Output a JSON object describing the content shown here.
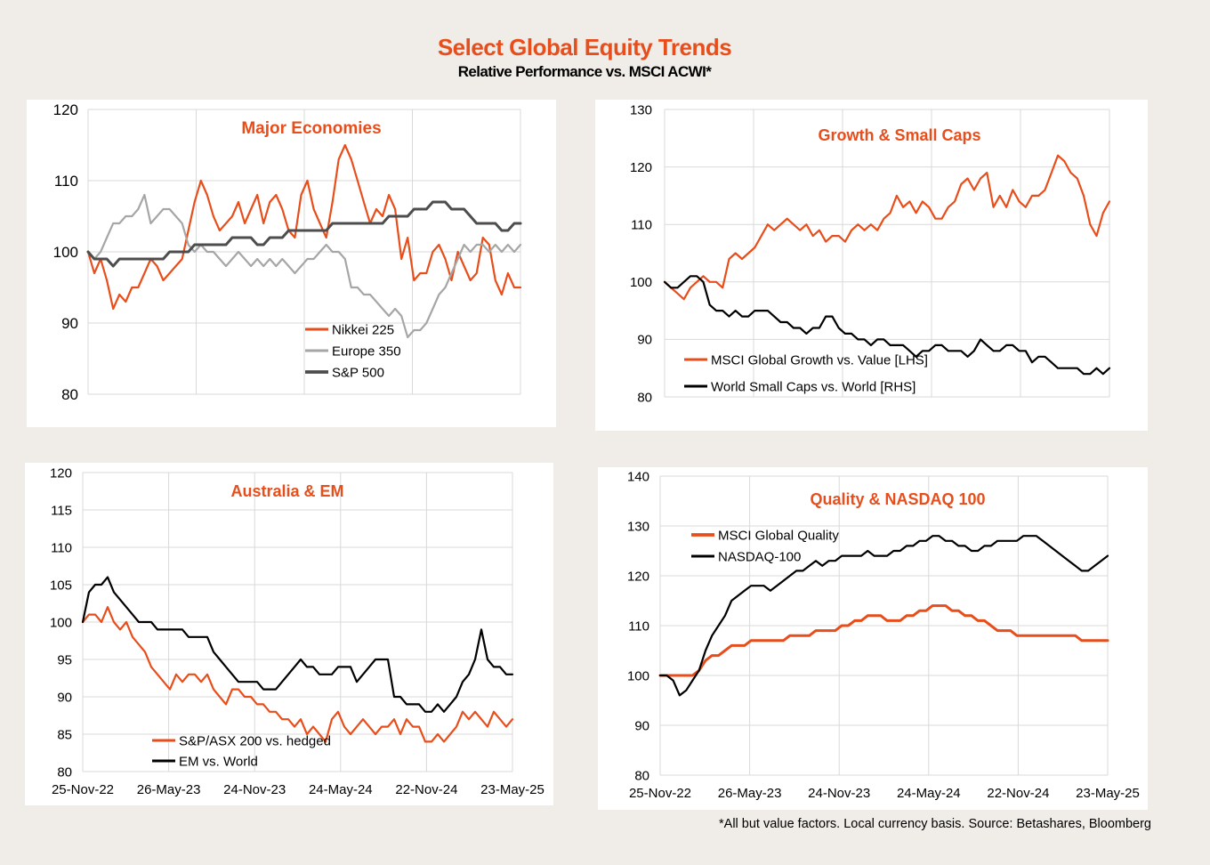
{
  "header": {
    "title": "Select Global Equity Trends",
    "subtitle": "Relative Performance vs. MSCI ACWI*"
  },
  "footnote": "*All but value factors. Local currency basis.  Source: Betashares, Bloomberg",
  "colors": {
    "orange": "#e84e1b",
    "grey": "#a6a6a6",
    "darkgrey": "#4d4d4d",
    "black": "#000000",
    "grid": "#d9d9d9"
  },
  "chart_data": [
    {
      "type": "line",
      "title": "Major Economies",
      "ylim": [
        80,
        120
      ],
      "yticks": [
        "80",
        "90",
        "100",
        "110",
        "120"
      ],
      "xticks": [],
      "grid": true,
      "legend_position": "bottom-right",
      "series": [
        {
          "name": "Nikkei 225",
          "color": "#e84e1b",
          "width": 2.2,
          "values": [
            100,
            97,
            99,
            96,
            92,
            94,
            93,
            95,
            95,
            97,
            99,
            98,
            96,
            97,
            98,
            99,
            103,
            107,
            110,
            108,
            105,
            103,
            104,
            105,
            107,
            104,
            106,
            108,
            104,
            107,
            108,
            106,
            103,
            102,
            108,
            110,
            106,
            104,
            102,
            107,
            113,
            115,
            113,
            110,
            107,
            104,
            106,
            105,
            108,
            106,
            99,
            102,
            96,
            97,
            97,
            100,
            101,
            99,
            96,
            100,
            98,
            96,
            97,
            102,
            101,
            96,
            94,
            97,
            95,
            95
          ]
        },
        {
          "name": "Europe 350",
          "color": "#a6a6a6",
          "width": 2.2,
          "values": [
            100,
            99,
            100,
            102,
            104,
            104,
            105,
            105,
            106,
            108,
            104,
            105,
            106,
            106,
            105,
            104,
            101,
            100,
            101,
            100,
            100,
            99,
            98,
            99,
            100,
            99,
            98,
            99,
            98,
            99,
            98,
            99,
            98,
            97,
            98,
            99,
            99,
            100,
            101,
            100,
            100,
            99,
            95,
            95,
            94,
            94,
            93,
            92,
            91,
            92,
            91,
            88,
            89,
            89,
            90,
            92,
            94,
            95,
            97,
            99,
            101,
            100,
            101,
            101,
            100,
            101,
            100,
            101,
            100,
            101
          ]
        },
        {
          "name": "S&P 500",
          "color": "#4d4d4d",
          "width": 3,
          "values": [
            100,
            99,
            99,
            99,
            98,
            99,
            99,
            99,
            99,
            99,
            99,
            99,
            99,
            100,
            100,
            100,
            100,
            101,
            101,
            101,
            101,
            101,
            101,
            102,
            102,
            102,
            102,
            101,
            101,
            102,
            102,
            102,
            103,
            103,
            103,
            103,
            103,
            103,
            103,
            104,
            104,
            104,
            104,
            104,
            104,
            104,
            104,
            104,
            105,
            105,
            105,
            105,
            106,
            106,
            106,
            107,
            107,
            107,
            106,
            106,
            106,
            105,
            104,
            104,
            104,
            104,
            103,
            103,
            104,
            104
          ]
        }
      ]
    },
    {
      "type": "line",
      "title": "Growth & Small Caps",
      "ylim": [
        80,
        130
      ],
      "yticks": [
        "80",
        "90",
        "100",
        "110",
        "120",
        "130"
      ],
      "xticks": [],
      "grid": true,
      "legend_position": "bottom-left",
      "series": [
        {
          "name": "MSCI Global Growth vs. Value [LHS]",
          "color": "#e84e1b",
          "width": 2.2,
          "values": [
            100,
            99,
            98,
            97,
            99,
            100,
            101,
            100,
            100,
            99,
            104,
            105,
            104,
            105,
            106,
            108,
            110,
            109,
            110,
            111,
            110,
            109,
            110,
            108,
            109,
            107,
            108,
            108,
            107,
            109,
            110,
            109,
            110,
            109,
            111,
            112,
            115,
            113,
            114,
            112,
            114,
            113,
            111,
            111,
            113,
            114,
            117,
            118,
            116,
            118,
            119,
            113,
            115,
            113,
            116,
            114,
            113,
            115,
            115,
            116,
            119,
            122,
            121,
            119,
            118,
            115,
            110,
            108,
            112,
            114
          ]
        },
        {
          "name": "World Small Caps vs. World [RHS]",
          "color": "#000000",
          "width": 2.2,
          "values": [
            100,
            99,
            99,
            100,
            101,
            101,
            100,
            96,
            95,
            95,
            94,
            95,
            94,
            94,
            95,
            95,
            95,
            94,
            93,
            93,
            92,
            92,
            91,
            92,
            92,
            94,
            94,
            92,
            91,
            91,
            90,
            90,
            89,
            90,
            90,
            89,
            89,
            89,
            88,
            87,
            88,
            88,
            89,
            89,
            88,
            88,
            88,
            87,
            88,
            90,
            89,
            88,
            88,
            89,
            89,
            88,
            88,
            86,
            87,
            87,
            86,
            85,
            85,
            85,
            85,
            84,
            84,
            85,
            84,
            85
          ]
        }
      ]
    },
    {
      "type": "line",
      "title": "Australia & EM",
      "ylim": [
        80,
        120
      ],
      "yticks": [
        "80",
        "85",
        "90",
        "95",
        "100",
        "105",
        "110",
        "115",
        "120"
      ],
      "xticks": [
        "25-Nov-22",
        "26-May-23",
        "24-Nov-23",
        "24-May-24",
        "22-Nov-24",
        "23-May-25"
      ],
      "grid": true,
      "legend_position": "bottom-left",
      "series": [
        {
          "name": "S&P/ASX 200 vs. hedged",
          "color": "#e84e1b",
          "width": 2.2,
          "values": [
            100,
            101,
            101,
            100,
            102,
            100,
            99,
            100,
            98,
            97,
            96,
            94,
            93,
            92,
            91,
            93,
            92,
            93,
            93,
            92,
            93,
            91,
            90,
            89,
            91,
            91,
            90,
            90,
            89,
            89,
            88,
            88,
            87,
            87,
            86,
            87,
            85,
            86,
            85,
            84,
            87,
            88,
            86,
            85,
            86,
            87,
            86,
            85,
            86,
            86,
            87,
            85,
            87,
            86,
            86,
            84,
            84,
            85,
            84,
            85,
            86,
            88,
            87,
            88,
            87,
            86,
            88,
            87,
            86,
            87
          ]
        },
        {
          "name": "EM vs. World",
          "color": "#000000",
          "width": 2.2,
          "values": [
            100,
            104,
            105,
            105,
            106,
            104,
            103,
            102,
            101,
            100,
            100,
            100,
            99,
            99,
            99,
            99,
            99,
            98,
            98,
            98,
            98,
            96,
            95,
            94,
            93,
            92,
            92,
            92,
            92,
            91,
            91,
            91,
            92,
            93,
            94,
            95,
            94,
            94,
            93,
            93,
            93,
            94,
            94,
            94,
            92,
            93,
            94,
            95,
            95,
            95,
            90,
            90,
            89,
            89,
            89,
            88,
            88,
            89,
            88,
            89,
            90,
            92,
            93,
            95,
            99,
            95,
            94,
            94,
            93,
            93
          ]
        }
      ]
    },
    {
      "type": "line",
      "title": "Quality & NASDAQ 100",
      "ylim": [
        80,
        140
      ],
      "yticks": [
        "80",
        "90",
        "100",
        "110",
        "120",
        "130",
        "140"
      ],
      "xticks": [
        "25-Nov-22",
        "26-May-23",
        "24-Nov-23",
        "24-May-24",
        "22-Nov-24",
        "23-May-25"
      ],
      "grid": true,
      "legend_position": "top-left",
      "series": [
        {
          "name": "MSCI Global Quality",
          "color": "#e84e1b",
          "width": 3,
          "values": [
            100,
            100,
            100,
            100,
            100,
            100,
            101,
            103,
            104,
            104,
            105,
            106,
            106,
            106,
            107,
            107,
            107,
            107,
            107,
            107,
            108,
            108,
            108,
            108,
            109,
            109,
            109,
            109,
            110,
            110,
            111,
            111,
            112,
            112,
            112,
            111,
            111,
            111,
            112,
            112,
            113,
            113,
            114,
            114,
            114,
            113,
            113,
            112,
            112,
            111,
            111,
            110,
            109,
            109,
            109,
            108,
            108,
            108,
            108,
            108,
            108,
            108,
            108,
            108,
            108,
            107,
            107,
            107,
            107,
            107
          ]
        },
        {
          "name": "NASDAQ-100",
          "color": "#000000",
          "width": 2.2,
          "values": [
            100,
            100,
            99,
            96,
            97,
            99,
            101,
            105,
            108,
            110,
            112,
            115,
            116,
            117,
            118,
            118,
            118,
            117,
            118,
            119,
            120,
            121,
            121,
            122,
            123,
            122,
            123,
            123,
            124,
            124,
            124,
            124,
            125,
            124,
            124,
            124,
            125,
            125,
            126,
            126,
            127,
            127,
            128,
            128,
            127,
            127,
            126,
            126,
            125,
            125,
            126,
            126,
            127,
            127,
            127,
            127,
            128,
            128,
            128,
            127,
            126,
            125,
            124,
            123,
            122,
            121,
            121,
            122,
            123,
            124
          ]
        }
      ]
    }
  ]
}
